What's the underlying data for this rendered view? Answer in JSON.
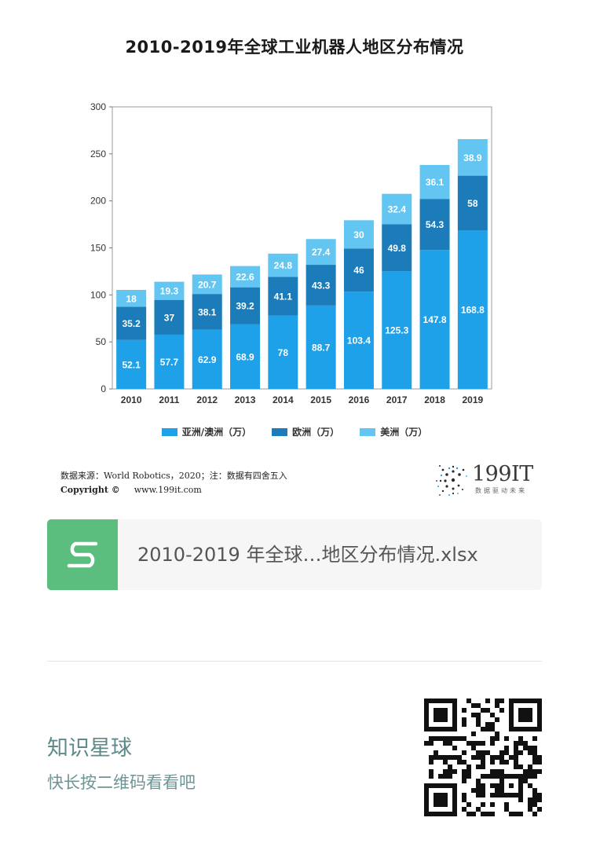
{
  "chart_data": {
    "type": "bar",
    "stacked": true,
    "title": "2010-2019年全球工业机器人地区分布情况",
    "categories": [
      "2010",
      "2011",
      "2012",
      "2013",
      "2014",
      "2015",
      "2016",
      "2017",
      "2018",
      "2019"
    ],
    "series": [
      {
        "name": "亚洲/澳洲（万）",
        "color": "#1ea1e8",
        "values": [
          52.1,
          57.7,
          62.9,
          68.9,
          78,
          88.7,
          103.4,
          125.3,
          147.8,
          168.8
        ]
      },
      {
        "name": "欧洲（万）",
        "color": "#1b7cb9",
        "values": [
          35.2,
          37,
          38.1,
          39.2,
          41.1,
          43.3,
          46,
          49.8,
          54.3,
          58
        ]
      },
      {
        "name": "美洲（万）",
        "color": "#63c6f2",
        "values": [
          18,
          19.3,
          20.7,
          22.6,
          24.8,
          27.4,
          30,
          32.4,
          36.1,
          38.9
        ]
      }
    ],
    "yticks": [
      0,
      50,
      100,
      150,
      200,
      250,
      300
    ],
    "ylim": [
      0,
      300
    ],
    "xlabel": "",
    "ylabel": "",
    "legend_position": "bottom-center",
    "grid": false
  },
  "source": {
    "text": "数据来源：World Robotics，2020；注：数据有四舍五入",
    "copyright_label": "Copyright ©",
    "url": "www.199it.com"
  },
  "logo": {
    "name": "199IT",
    "tagline": "数据驱动未来"
  },
  "file_card": {
    "file_name": "2010-2019 年全球…地区分布情况.xlsx",
    "icon": "sheet-s-icon"
  },
  "promo": {
    "title": "知识星球",
    "subtitle": "快长按二维码看看吧",
    "qr_icon": "qr-code-icon"
  },
  "colors": {
    "file_icon_bg": "#5bbe7e",
    "promo_text": "#5f8a8a"
  }
}
